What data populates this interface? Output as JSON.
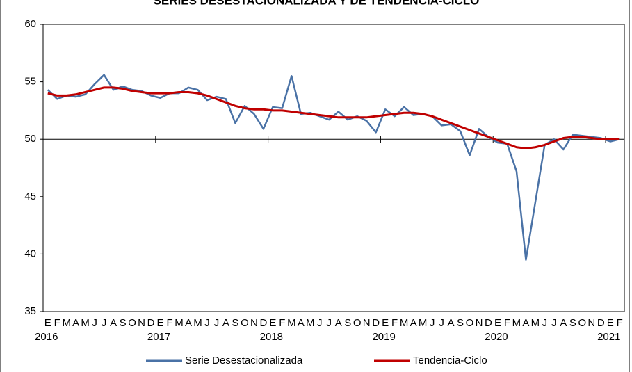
{
  "chart_data": {
    "type": "line",
    "title": "SERIES DESESTACIONALIZADA Y DE TENDENCIA-CICLO",
    "categories": [
      "E",
      "F",
      "M",
      "A",
      "M",
      "J",
      "J",
      "A",
      "S",
      "O",
      "N",
      "D",
      "E",
      "F",
      "M",
      "A",
      "M",
      "J",
      "J",
      "A",
      "S",
      "O",
      "N",
      "D",
      "E",
      "F",
      "M",
      "A",
      "M",
      "J",
      "J",
      "A",
      "S",
      "O",
      "N",
      "D",
      "E",
      "F",
      "M",
      "A",
      "M",
      "J",
      "J",
      "A",
      "S",
      "O",
      "N",
      "D",
      "E",
      "F",
      "M",
      "A",
      "M",
      "J",
      "J",
      "A",
      "S",
      "O",
      "N",
      "D",
      "E",
      "F"
    ],
    "year_labels": [
      "2016",
      null,
      null,
      null,
      null,
      null,
      null,
      null,
      null,
      null,
      null,
      null,
      "2017",
      null,
      null,
      null,
      null,
      null,
      null,
      null,
      null,
      null,
      null,
      null,
      "2018",
      null,
      null,
      null,
      null,
      null,
      null,
      null,
      null,
      null,
      null,
      null,
      "2019",
      null,
      null,
      null,
      null,
      null,
      null,
      null,
      null,
      null,
      null,
      null,
      "2020",
      null,
      null,
      null,
      null,
      null,
      null,
      null,
      null,
      null,
      null,
      null,
      "2021",
      null
    ],
    "series": [
      {
        "name": "Serie Desestacionalizada",
        "color": "#4a72a6",
        "values": [
          54.3,
          53.5,
          53.8,
          53.7,
          53.9,
          54.8,
          55.6,
          54.3,
          54.6,
          54.3,
          54.2,
          53.8,
          53.6,
          54.0,
          54.0,
          54.5,
          54.3,
          53.4,
          53.7,
          53.5,
          51.4,
          52.9,
          52.2,
          50.9,
          52.8,
          52.7,
          55.5,
          52.2,
          52.3,
          52.0,
          51.7,
          52.4,
          51.7,
          52.0,
          51.6,
          50.6,
          52.6,
          52.0,
          52.8,
          52.1,
          52.2,
          52.0,
          51.2,
          51.3,
          50.7,
          48.6,
          50.9,
          50.2,
          49.7,
          49.6,
          47.2,
          39.5,
          44.5,
          49.5,
          50.0,
          49.1,
          50.4,
          50.3,
          50.2,
          50.1,
          49.8,
          50.0
        ]
      },
      {
        "name": "Tendencia-Ciclo",
        "color": "#c00000",
        "values": [
          54.0,
          53.8,
          53.8,
          53.9,
          54.1,
          54.3,
          54.5,
          54.5,
          54.4,
          54.2,
          54.1,
          54.0,
          54.0,
          54.0,
          54.1,
          54.1,
          54.0,
          53.8,
          53.5,
          53.2,
          52.9,
          52.7,
          52.6,
          52.6,
          52.5,
          52.5,
          52.4,
          52.3,
          52.2,
          52.1,
          52.0,
          51.9,
          51.9,
          51.9,
          51.9,
          52.0,
          52.1,
          52.2,
          52.3,
          52.3,
          52.2,
          52.0,
          51.7,
          51.4,
          51.1,
          50.8,
          50.5,
          50.2,
          49.9,
          49.6,
          49.3,
          49.2,
          49.3,
          49.5,
          49.8,
          50.1,
          50.2,
          50.2,
          50.1,
          50.0,
          50.0,
          50.0
        ]
      }
    ],
    "ylim": [
      35,
      60
    ],
    "yticks": [
      35,
      40,
      45,
      50,
      55,
      60
    ],
    "x_axis_crossing": 50,
    "grid": false,
    "legend": "bottom"
  }
}
